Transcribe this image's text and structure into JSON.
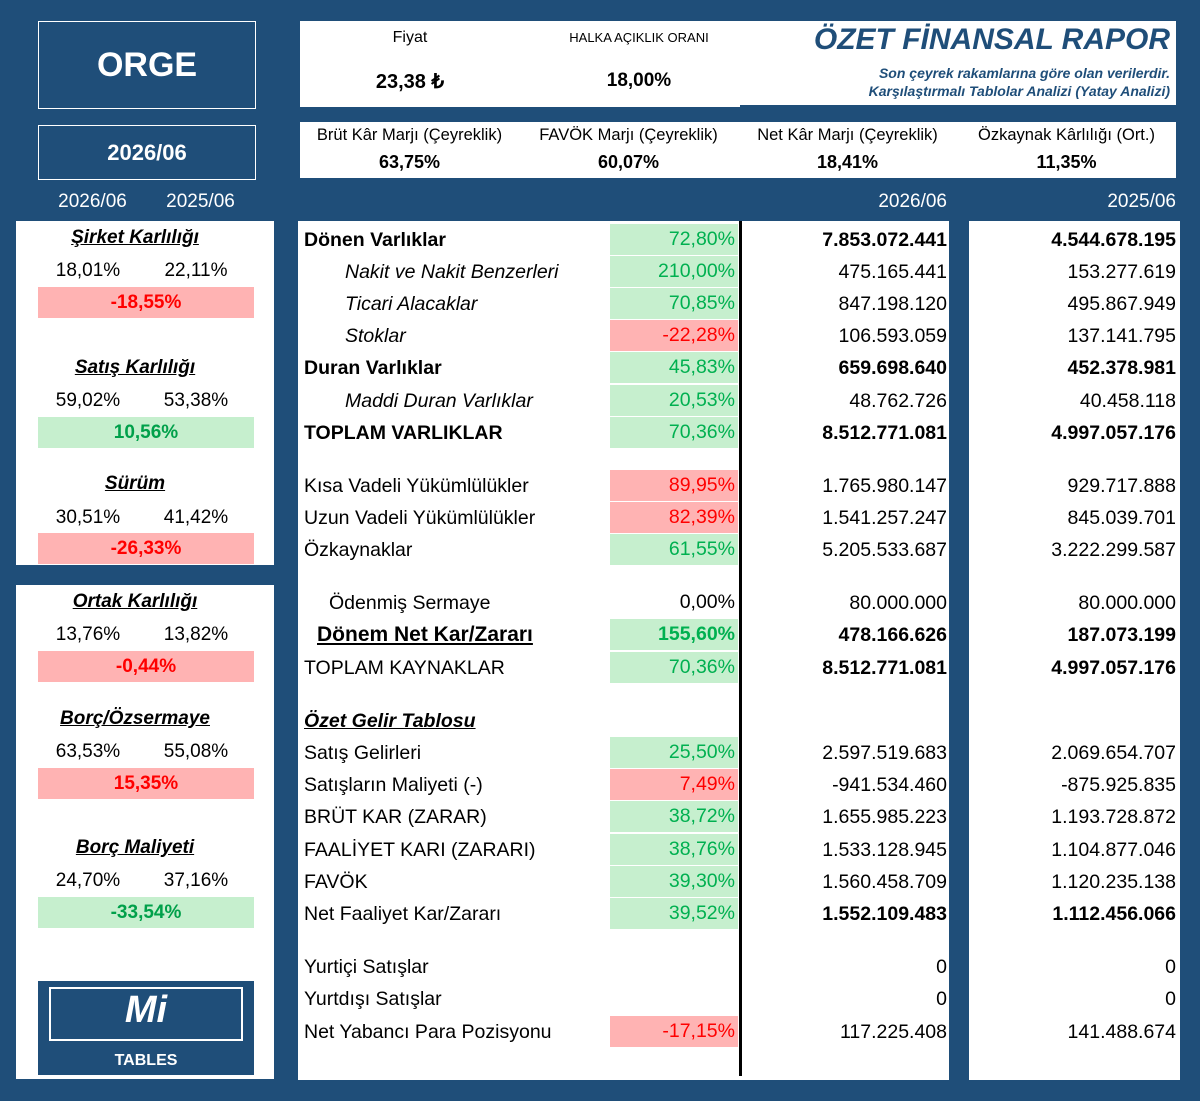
{
  "ticker": "ORGE",
  "period": "2026/06",
  "left_years": {
    "current": "2026/06",
    "previous": "2025/06"
  },
  "top": {
    "price_label": "Fiyat",
    "price_value": "23,38 ₺",
    "float_label": "HALKA AÇIKLIK ORANI",
    "float_value": "18,00%",
    "report_title": "ÖZET FİNANSAL RAPOR",
    "note1": "Son çeyrek rakamlarına göre olan verilerdir.",
    "note2": "Karşılaştırmalı Tablolar Analizi (Yatay Analizi)"
  },
  "margins": [
    {
      "label": "Brüt Kâr Marjı (Çeyreklik)",
      "value": "63,75%"
    },
    {
      "label": "FAVÖK Marjı (Çeyreklik)",
      "value": "60,07%"
    },
    {
      "label": "Net Kâr Marjı (Çeyreklik)",
      "value": "18,41%"
    },
    {
      "label": "Özkaynak Kârlılığı (Ort.)",
      "value": "11,35%"
    }
  ],
  "table_years": {
    "current": "2026/06",
    "previous": "2025/06"
  },
  "metrics_panel1": [
    {
      "title": "Şirket Karlılığı",
      "v1": "18,01%",
      "v2": "22,11%",
      "change": "-18,55%",
      "status": "neg"
    },
    {
      "title": "Satış Karlılığı",
      "v1": "59,02%",
      "v2": "53,38%",
      "change": "10,56%",
      "status": "pos"
    },
    {
      "title": "Sürüm",
      "v1": "30,51%",
      "v2": "41,42%",
      "change": "-26,33%",
      "status": "neg"
    }
  ],
  "metrics_panel2": [
    {
      "title": "Ortak Karlılığı",
      "v1": "13,76%",
      "v2": "13,82%",
      "change": "-0,44%",
      "status": "neg"
    },
    {
      "title": "Borç/Özsermaye",
      "v1": "63,53%",
      "v2": "55,08%",
      "change": "15,35%",
      "status": "neg"
    },
    {
      "title": "Borç Maliyeti",
      "v1": "24,70%",
      "v2": "37,16%",
      "change": "-33,54%",
      "status": "pos"
    }
  ],
  "logo": {
    "mark": "Mi",
    "text": "TABLES"
  },
  "rows": [
    {
      "label": "Dönen Varlıklar",
      "pct": "72,80%",
      "status": "pos",
      "v1": "7.853.072.441",
      "v2": "4.544.678.195",
      "style": "bold"
    },
    {
      "label": "Nakit ve Nakit Benzerleri",
      "pct": "210,00%",
      "status": "pos",
      "v1": "475.165.441",
      "v2": "153.277.619",
      "style": "sub"
    },
    {
      "label": "Ticari Alacaklar",
      "pct": "70,85%",
      "status": "pos",
      "v1": "847.198.120",
      "v2": "495.867.949",
      "style": "sub"
    },
    {
      "label": "Stoklar",
      "pct": "-22,28%",
      "status": "neg",
      "v1": "106.593.059",
      "v2": "137.141.795",
      "style": "sub"
    },
    {
      "label": "Duran Varlıklar",
      "pct": "45,83%",
      "status": "pos",
      "v1": "659.698.640",
      "v2": "452.378.981",
      "style": "bold"
    },
    {
      "label": "Maddi Duran Varlıklar",
      "pct": "20,53%",
      "status": "pos",
      "v1": "48.762.726",
      "v2": "40.458.118",
      "style": "sub"
    },
    {
      "label": "TOPLAM VARLIKLAR",
      "pct": "70,36%",
      "status": "pos",
      "v1": "8.512.771.081",
      "v2": "4.997.057.176",
      "style": "bold"
    },
    {
      "label": "Kısa Vadeli Yükümlülükler",
      "pct": "89,95%",
      "status": "neg",
      "v1": "1.765.980.147",
      "v2": "929.717.888",
      "style": "normal"
    },
    {
      "label": "Uzun Vadeli Yükümlülükler",
      "pct": "82,39%",
      "status": "neg",
      "v1": "1.541.257.247",
      "v2": "845.039.701",
      "style": "normal"
    },
    {
      "label": "Özkaynaklar",
      "pct": "61,55%",
      "status": "pos",
      "v1": "5.205.533.687",
      "v2": "3.222.299.587",
      "style": "normal"
    },
    {
      "label": "Ödenmiş Sermaye",
      "pct": "0,00%",
      "status": "none",
      "v1": "80.000.000",
      "v2": "80.000.000",
      "style": "indent"
    },
    {
      "label": "Dönem Net Kar/Zararı",
      "pct": "155,60%",
      "status": "pos",
      "v1": "478.166.626",
      "v2": "187.073.199",
      "style": "netkar"
    },
    {
      "label": "TOPLAM KAYNAKLAR",
      "pct": "70,36%",
      "status": "pos",
      "v1": "8.512.771.081",
      "v2": "4.997.057.176",
      "style": "normalbold"
    },
    {
      "label": "Özet Gelir Tablosu",
      "pct": "",
      "status": "blank",
      "v1": "",
      "v2": "",
      "style": "section"
    },
    {
      "label": "Satış Gelirleri",
      "pct": "25,50%",
      "status": "pos",
      "v1": "2.597.519.683",
      "v2": "2.069.654.707",
      "style": "normal"
    },
    {
      "label": "Satışların Maliyeti (-)",
      "pct": "7,49%",
      "status": "neg",
      "v1": "-941.534.460",
      "v2": "-875.925.835",
      "style": "normal"
    },
    {
      "label": "BRÜT KAR (ZARAR)",
      "pct": "38,72%",
      "status": "pos",
      "v1": "1.655.985.223",
      "v2": "1.193.728.872",
      "style": "normal"
    },
    {
      "label": "FAALİYET KARI (ZARARI)",
      "pct": "38,76%",
      "status": "pos",
      "v1": "1.533.128.945",
      "v2": "1.104.877.046",
      "style": "normal"
    },
    {
      "label": "FAVÖK",
      "pct": "39,30%",
      "status": "pos",
      "v1": "1.560.458.709",
      "v2": "1.120.235.138",
      "style": "normal"
    },
    {
      "label": "Net Faaliyet Kar/Zararı",
      "pct": "39,52%",
      "status": "pos",
      "v1": "1.552.109.483",
      "v2": "1.112.456.066",
      "style": "normalbold"
    },
    {
      "label": "Yurtiçi Satışlar",
      "pct": "",
      "status": "blank",
      "v1": "0",
      "v2": "0",
      "style": "normal"
    },
    {
      "label": "Yurtdışı Satışlar",
      "pct": "",
      "status": "blank",
      "v1": "0",
      "v2": "0",
      "style": "normal"
    },
    {
      "label": "Net Yabancı Para Pozisyonu",
      "pct": "-17,15%",
      "status": "neg",
      "v1": "117.225.408",
      "v2": "141.488.674",
      "style": "normal"
    }
  ],
  "colors": {
    "navy": "#1f4e79",
    "green_fill": "#c6efce",
    "red_fill": "#ffb3b3",
    "green_text": "#00b050",
    "red_text": "#ff0000"
  }
}
